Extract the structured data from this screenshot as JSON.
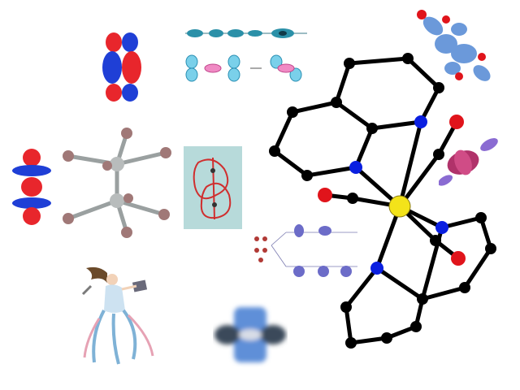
{
  "collage": {
    "description_label": "",
    "colors": {
      "orbital_red": "#e8262c",
      "orbital_blue": "#1f3fd6",
      "carbon_black": "#000000",
      "nitrogen_blue": "#0a1fe0",
      "metal_yellow": "#f3e31a",
      "oxygen_red": "#e0141b",
      "cluster_brown": "#a07877",
      "panel_teal": "#b7dada"
    },
    "figures": [
      {
        "name": "p-orbital-overlap",
        "icon": "pi-bond-orbital-icon"
      },
      {
        "name": "d-z2-orbital",
        "icon": "dz2-orbital-icon"
      },
      {
        "name": "metal-metal-cluster",
        "icon": "dimetal-cluster-icon"
      },
      {
        "name": "sigma-orbital-series",
        "icon": "sigma-orbital-icon"
      },
      {
        "name": "pi-orbital-series",
        "icon": "pi-orbital-icon"
      },
      {
        "name": "delta-bond-sketch",
        "icon": "delta-bond-icon"
      },
      {
        "name": "benzoquinone-orbital",
        "icon": "quinone-orbital-icon"
      },
      {
        "name": "metal-complex-structure",
        "icon": "molecule-icon"
      },
      {
        "name": "co-orbital-lobe",
        "icon": "co-orbital-icon"
      },
      {
        "name": "orbital-splitting-diagram",
        "icon": "splitting-diagram-icon"
      },
      {
        "name": "muse-illustration",
        "icon": "muse-figure-icon"
      },
      {
        "name": "blurred-orbital",
        "icon": "blurred-orbital-icon"
      }
    ]
  }
}
